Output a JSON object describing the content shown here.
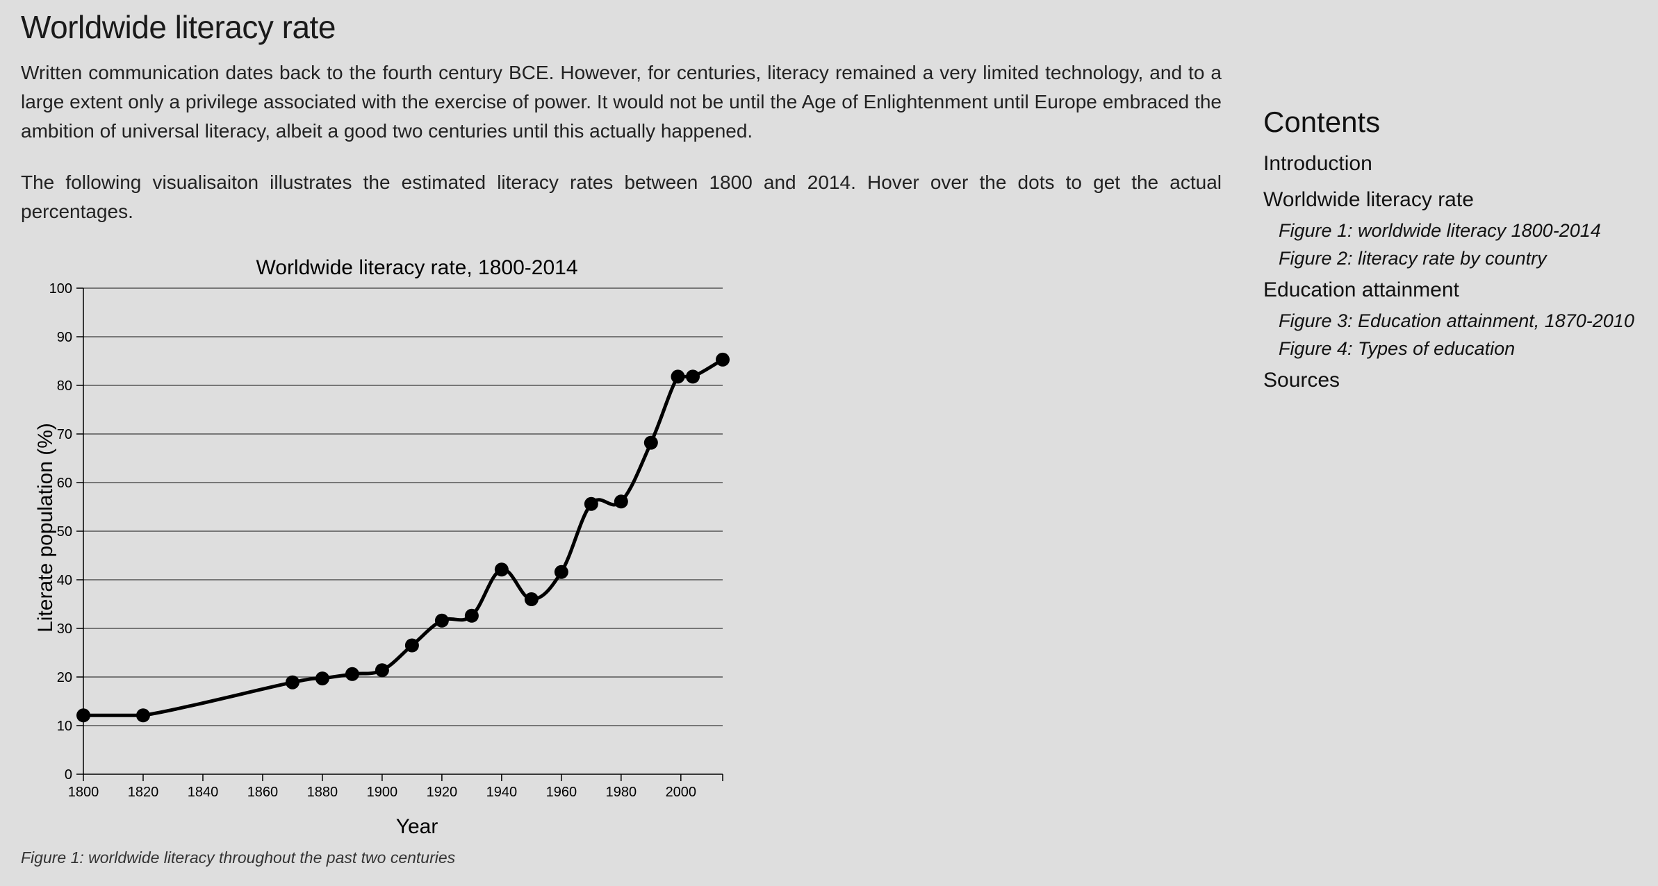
{
  "article": {
    "title": "Worldwide literacy rate",
    "paragraph1": "Written communication dates back to the fourth century BCE. However, for centuries, literacy remained a very limited technology, and to a large extent only a privilege associated with the exercise of power. It would not be until the Age of Enlightenment until Europe embraced the ambition of universal literacy, albeit a good two centuries until this actually happened.",
    "paragraph2": "The following visualisaiton illustrates the estimated literacy rates between 1800 and 2014. Hover over the dots to get the actual percentages.",
    "figure_caption": "Figure 1: worldwide literacy throughout the past two centuries"
  },
  "toc": {
    "heading": "Contents",
    "introduction": "Introduction",
    "literacy": "Worldwide literacy rate",
    "figure1": "Figure 1: worldwide literacy 1800-2014",
    "figure2": "Figure 2: literacy rate by country",
    "education": "Education attainment",
    "figure3": "Figure 3: Education attainment, 1870-2010",
    "figure4": "Figure 4: Types of education",
    "sources": "Sources"
  },
  "chart_data": {
    "type": "line",
    "title": "Worldwide literacy rate, 1800-2014",
    "xlabel": "Year",
    "ylabel": "Literate population (%)",
    "xlim": [
      1800,
      2014
    ],
    "ylim": [
      0,
      100
    ],
    "xticks": [
      1800,
      1820,
      1840,
      1860,
      1880,
      1900,
      1920,
      1940,
      1960,
      1980,
      2000
    ],
    "yticks": [
      0,
      10,
      20,
      30,
      40,
      50,
      60,
      70,
      80,
      90,
      100
    ],
    "grid": "horizontal",
    "x": [
      1800,
      1820,
      1870,
      1880,
      1890,
      1900,
      1910,
      1920,
      1930,
      1940,
      1950,
      1960,
      1970,
      1980,
      1990,
      1999,
      2004,
      2014
    ],
    "y": [
      12.1,
      12.1,
      18.9,
      19.7,
      20.6,
      21.4,
      26.5,
      31.6,
      32.6,
      42.1,
      36.0,
      41.6,
      55.6,
      56.1,
      68.2,
      81.8,
      81.8,
      85.3
    ],
    "line_color": "#000000",
    "point_color": "#000000"
  }
}
